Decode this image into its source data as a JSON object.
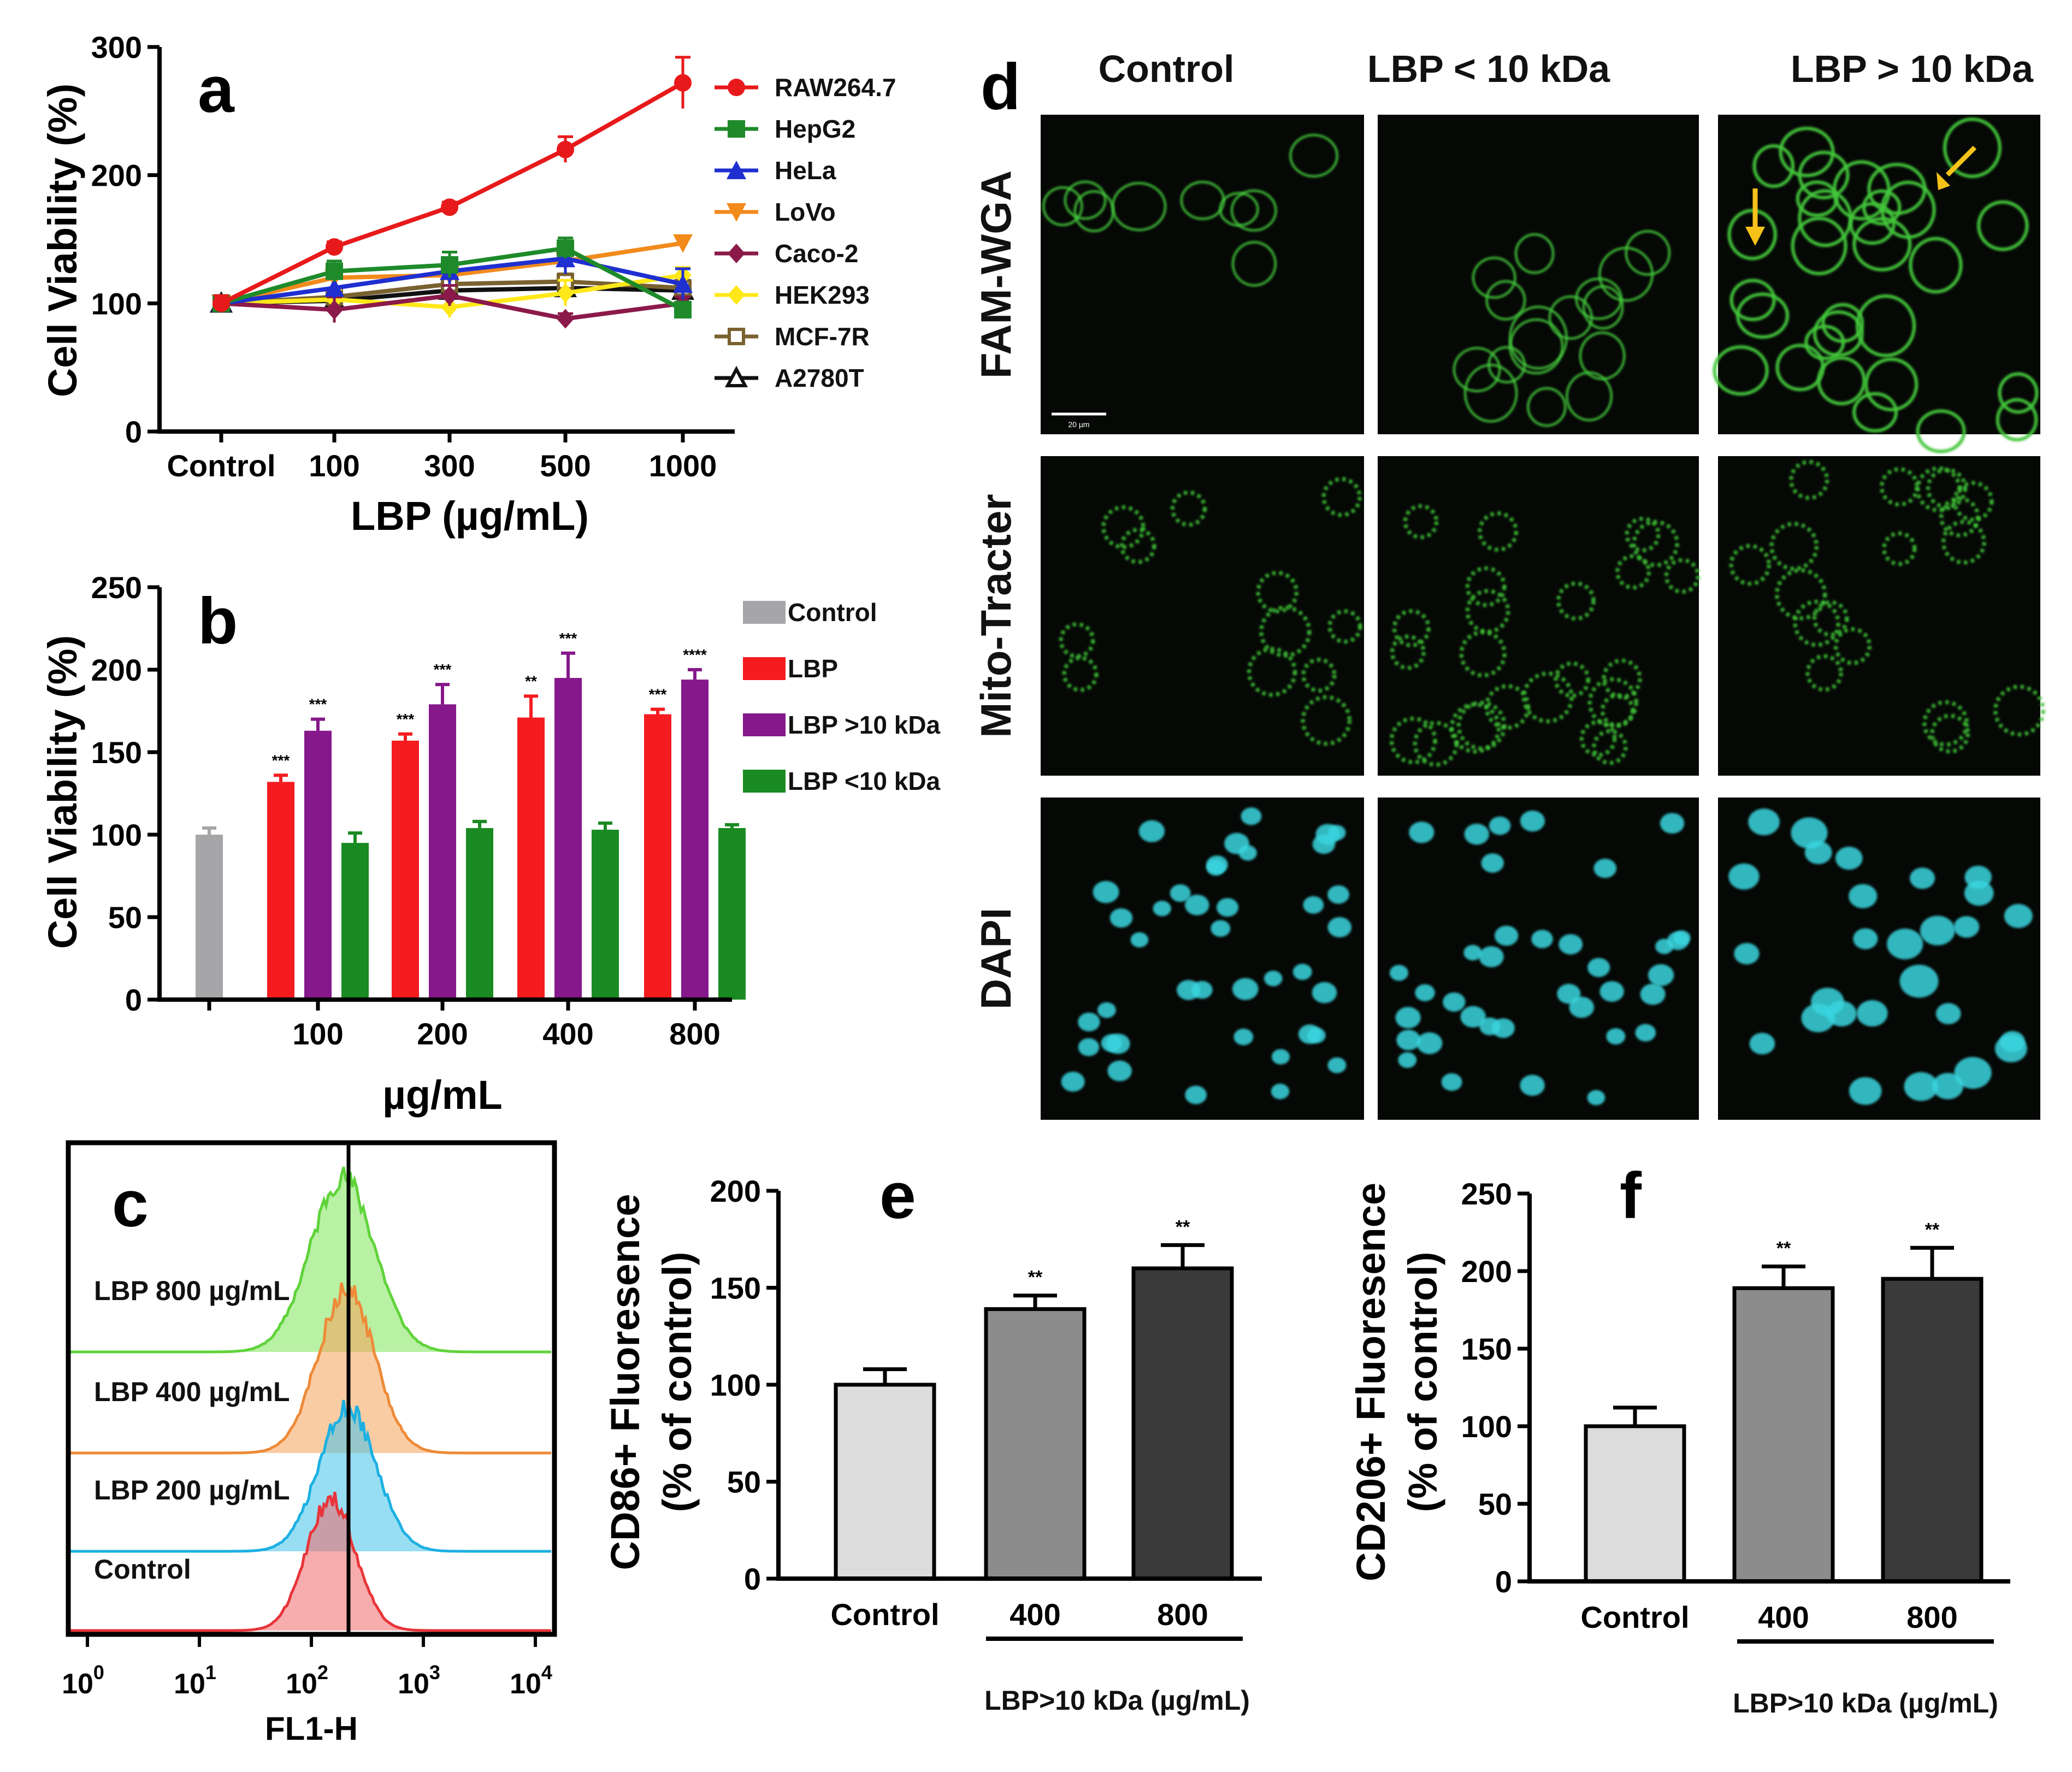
{
  "chart_data": [
    {
      "id": "a",
      "type": "line",
      "panel_label": "a",
      "categories": [
        "Control",
        "100",
        "300",
        "500",
        "1000"
      ],
      "xlabel": "LBP (µg/mL)",
      "ylabel": "Cell Viability (%)",
      "ylim": [
        0,
        300
      ],
      "yticks": [
        "0",
        "100",
        "200",
        "300"
      ],
      "series": [
        {
          "name": "RAW264.7",
          "color": "#e8191b",
          "marker": "circle",
          "values": [
            100,
            144,
            175,
            220,
            272
          ],
          "errors": [
            6,
            4,
            4,
            10,
            20
          ]
        },
        {
          "name": "HepG2",
          "color": "#1e8a2a",
          "marker": "square",
          "values": [
            100,
            125,
            130,
            143,
            95
          ],
          "errors": [
            6,
            8,
            10,
            8,
            6
          ]
        },
        {
          "name": "HeLa",
          "color": "#1f2fd0",
          "marker": "triangle",
          "values": [
            100,
            112,
            125,
            135,
            115
          ],
          "errors": [
            6,
            8,
            10,
            12,
            12
          ]
        },
        {
          "name": "LoVo",
          "color": "#f28a1c",
          "marker": "triangle-down",
          "values": [
            100,
            120,
            122,
            133,
            147
          ],
          "errors": [
            5,
            6,
            6,
            6,
            5
          ]
        },
        {
          "name": "Caco-2",
          "color": "#8b1a4a",
          "marker": "diamond",
          "values": [
            100,
            95,
            106,
            88,
            100
          ],
          "errors": [
            6,
            10,
            8,
            4,
            5
          ]
        },
        {
          "name": "HEK293",
          "color": "#ffe81a",
          "marker": "diamond",
          "values": [
            100,
            103,
            97,
            108,
            122
          ],
          "errors": [
            5,
            8,
            8,
            10,
            6
          ]
        },
        {
          "name": "MCF-7R",
          "color": "#7a6230",
          "marker": "open-square",
          "values": [
            100,
            105,
            115,
            117,
            112
          ],
          "errors": [
            5,
            6,
            6,
            6,
            6
          ]
        },
        {
          "name": "A2780T",
          "color": "#111111",
          "marker": "open-triangle",
          "values": [
            100,
            102,
            110,
            112,
            110
          ],
          "errors": [
            5,
            6,
            6,
            6,
            6
          ]
        }
      ]
    },
    {
      "id": "b",
      "type": "bar",
      "panel_label": "b",
      "categories": [
        "",
        "100",
        "200",
        "400",
        "800"
      ],
      "xlabel": "µg/mL",
      "ylabel": "Cell Viability (%)",
      "ylim": [
        0,
        250
      ],
      "yticks": [
        "0",
        "50",
        "100",
        "150",
        "200",
        "250"
      ],
      "series": [
        {
          "name": "Control",
          "color": "#a6a6a8",
          "values": [
            100,
            null,
            null,
            null,
            null
          ],
          "errors": [
            4,
            null,
            null,
            null,
            null
          ],
          "sig": [
            "",
            "",
            "",
            "",
            ""
          ]
        },
        {
          "name": "LBP",
          "color": "#f41c1f",
          "values": [
            null,
            132,
            157,
            171,
            173
          ],
          "errors": [
            null,
            4,
            4,
            13,
            3
          ],
          "sig": [
            "",
            "***",
            "***",
            "**",
            "***"
          ]
        },
        {
          "name": "LBP >10 kDa",
          "color": "#85188a",
          "values": [
            null,
            163,
            179,
            195,
            194
          ],
          "errors": [
            null,
            7,
            12,
            15,
            6
          ],
          "sig": [
            "",
            "***",
            "***",
            "***",
            "****"
          ]
        },
        {
          "name": "LBP <10 kDa",
          "color": "#1a8a22",
          "values": [
            null,
            95,
            104,
            103,
            104
          ],
          "errors": [
            null,
            6,
            4,
            4,
            2
          ],
          "sig": [
            "",
            "",
            "",
            "",
            ""
          ]
        }
      ]
    },
    {
      "id": "c",
      "type": "area",
      "panel_label": "c",
      "subtype": "flow cytometry histogram",
      "xlabel": "FL1-H",
      "xscale": "log",
      "xticks": [
        {
          "base": "10",
          "exp": "0"
        },
        {
          "base": "10",
          "exp": "1"
        },
        {
          "base": "10",
          "exp": "2"
        },
        {
          "base": "10",
          "exp": "3"
        },
        {
          "base": "10",
          "exp": "4"
        }
      ],
      "marker_line": 170,
      "series": [
        {
          "name": "LBP 800 µg/mL",
          "color": "#7ee35a",
          "peak": 190,
          "width": 0.26
        },
        {
          "name": "LBP 400 µg/mL",
          "color": "#f5a25a",
          "peak": 205,
          "width": 0.23
        },
        {
          "name": "LBP 200 µg/mL",
          "color": "#44c2ea",
          "peak": 210,
          "width": 0.23
        },
        {
          "name": "Control",
          "color": "#f0686a",
          "peak": 150,
          "width": 0.2
        }
      ]
    },
    {
      "id": "d",
      "type": "table",
      "panel_label": "d",
      "subtype": "confocal microscopy image grid",
      "columns": [
        "Control",
        "LBP < 10 kDa",
        "LBP > 10 kDa"
      ],
      "rows": [
        {
          "name": "FAM-WGA",
          "color": "#43c63a"
        },
        {
          "name": "Mito-Tracter",
          "color": "#3cbf35"
        },
        {
          "name": "DAPI",
          "color": "#3ad6e0"
        }
      ],
      "scale_bar": "20 µm"
    },
    {
      "id": "e",
      "type": "bar",
      "panel_label": "e",
      "categories": [
        "Control",
        "400",
        "800"
      ],
      "values": [
        100,
        139,
        160
      ],
      "errors": [
        8,
        7,
        12
      ],
      "colors": [
        "#dcdcdc",
        "#8c8c8c",
        "#3a3a3a"
      ],
      "sig": [
        "",
        "**",
        "**"
      ],
      "ylabel": "CD86+ Fluoresence",
      "ylabel2": "(% of control)",
      "group_label": "LBP>10 kDa (µg/mL)",
      "ylim": [
        0,
        200
      ],
      "yticks": [
        "0",
        "50",
        "100",
        "150",
        "200"
      ]
    },
    {
      "id": "f",
      "type": "bar",
      "panel_label": "f",
      "categories": [
        "Control",
        "400",
        "800"
      ],
      "values": [
        100,
        189,
        195
      ],
      "errors": [
        12,
        14,
        20
      ],
      "colors": [
        "#dcdcdc",
        "#8c8c8c",
        "#3a3a3a"
      ],
      "sig": [
        "",
        "**",
        "**"
      ],
      "ylabel": "CD206+ Fluoresence",
      "ylabel2": "(% of control)",
      "group_label": "LBP>10 kDa (µg/mL)",
      "ylim": [
        0,
        250
      ],
      "yticks": [
        "0",
        "50",
        "100",
        "150",
        "200",
        "250"
      ]
    }
  ]
}
